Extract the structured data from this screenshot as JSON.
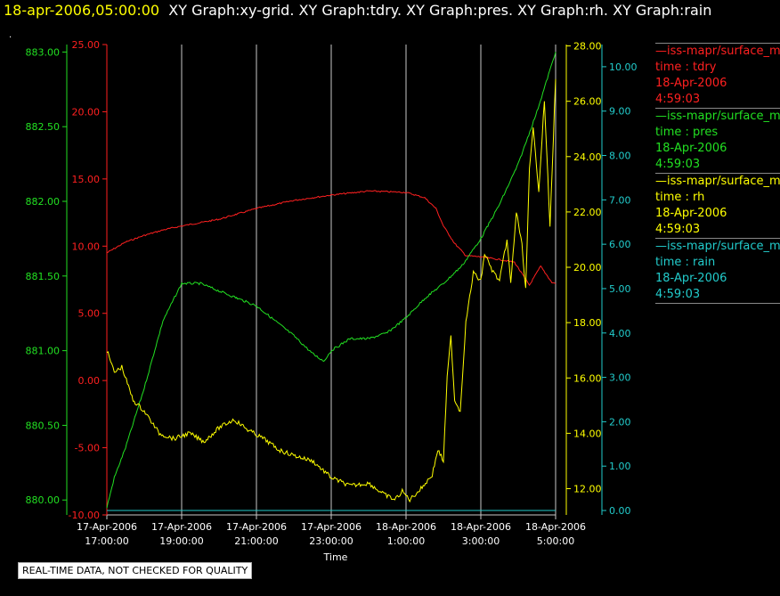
{
  "header": {
    "date": "18-apr-2006,05:00:00",
    "titles": "XY Graph:xy-grid.  XY Graph:tdry.  XY Graph:pres.  XY Graph:rh.  XY Graph:rain",
    "dot": "."
  },
  "colors": {
    "tdry": "#ff2020",
    "pres": "#22e022",
    "rh": "#ffff00",
    "rain": "#22cccc",
    "grid": "#c8c8c8"
  },
  "legend": [
    {
      "series": "tdry",
      "source": "—iss-mapr/surface_m",
      "name": "time : tdry",
      "date": "18-Apr-2006",
      "time": "4:59:03"
    },
    {
      "series": "pres",
      "source": "—iss-mapr/surface_m",
      "name": "time : pres",
      "date": "18-Apr-2006",
      "time": "4:59:03"
    },
    {
      "series": "rh",
      "source": "—iss-mapr/surface_m",
      "name": "time : rh",
      "date": "18-Apr-2006",
      "time": "4:59:03"
    },
    {
      "series": "rain",
      "source": "—iss-mapr/surface_m",
      "name": "time : rain",
      "date": "18-Apr-2006",
      "time": "4:59:03"
    }
  ],
  "notice": "REAL-TIME DATA, NOT CHECKED FOR QUALITY",
  "chart_data": {
    "type": "line",
    "xlabel": "Time",
    "x_ticks": [
      {
        "t": 17,
        "date": "17-Apr-2006",
        "time": "17:00:00"
      },
      {
        "t": 19,
        "date": "17-Apr-2006",
        "time": "19:00:00"
      },
      {
        "t": 21,
        "date": "17-Apr-2006",
        "time": "21:00:00"
      },
      {
        "t": 23,
        "date": "17-Apr-2006",
        "time": "23:00:00"
      },
      {
        "t": 25,
        "date": "18-Apr-2006",
        "time": "1:00:00"
      },
      {
        "t": 27,
        "date": "18-Apr-2006",
        "time": "3:00:00"
      },
      {
        "t": 29,
        "date": "18-Apr-2006",
        "time": "5:00:00"
      }
    ],
    "xlim": [
      17,
      29
    ],
    "grid": "vertical",
    "axes": {
      "tdry": {
        "ylim": [
          -10,
          25
        ],
        "ticks": [
          "-10.00",
          "-5.00",
          "0.00",
          "5.00",
          "10.00",
          "15.00",
          "20.00",
          "25.00"
        ]
      },
      "pres": {
        "ylim": [
          879.9,
          883.05
        ],
        "ticks": [
          "880.00",
          "880.50",
          "881.00",
          "881.50",
          "882.00",
          "882.50",
          "883.00"
        ]
      },
      "rh": {
        "ylim": [
          11.05,
          28.05
        ],
        "ticks": [
          "12.00",
          "14.00",
          "16.00",
          "18.00",
          "20.00",
          "22.00",
          "24.00",
          "26.00",
          "28.00"
        ]
      },
      "rain": {
        "ylim": [
          -0.1,
          10.5
        ],
        "ticks": [
          "0.00",
          "1.00",
          "2.00",
          "3.00",
          "4.00",
          "5.00",
          "6.00",
          "7.00",
          "8.00",
          "9.00",
          "10.00"
        ]
      }
    },
    "series": [
      {
        "key": "tdry",
        "name": "time : tdry",
        "x": [
          17.0,
          17.5,
          18.0,
          18.5,
          19.0,
          20.0,
          21.0,
          22.0,
          23.0,
          24.0,
          25.0,
          25.5,
          25.8,
          26.0,
          26.3,
          26.6,
          27.0,
          27.5,
          27.9,
          28.3,
          28.6,
          28.9,
          29.0
        ],
        "y": [
          9.5,
          10.3,
          10.8,
          11.2,
          11.5,
          12.0,
          12.8,
          13.4,
          13.8,
          14.1,
          14.0,
          13.6,
          12.8,
          11.5,
          10.2,
          9.3,
          9.2,
          9.0,
          8.8,
          7.1,
          8.5,
          7.3,
          7.2
        ]
      },
      {
        "key": "pres",
        "name": "time : pres",
        "x": [
          17.0,
          17.2,
          17.5,
          18.0,
          18.5,
          19.0,
          19.5,
          20.0,
          20.5,
          21.0,
          21.5,
          22.0,
          22.5,
          22.8,
          23.0,
          23.5,
          24.0,
          24.5,
          25.0,
          25.5,
          26.0,
          26.5,
          27.0,
          27.5,
          28.0,
          28.5,
          29.0
        ],
        "y": [
          879.95,
          880.15,
          880.35,
          880.75,
          881.2,
          881.45,
          881.45,
          881.4,
          881.35,
          881.3,
          881.2,
          881.1,
          880.98,
          880.93,
          881.0,
          881.08,
          881.08,
          881.12,
          881.22,
          881.35,
          881.45,
          881.57,
          881.75,
          881.98,
          882.25,
          882.6,
          883.0
        ]
      },
      {
        "key": "rh",
        "name": "time : rh",
        "x": [
          17.0,
          17.2,
          17.4,
          17.7,
          18.0,
          18.4,
          18.8,
          19.2,
          19.6,
          20.0,
          20.4,
          20.8,
          21.2,
          21.6,
          22.0,
          22.5,
          23.0,
          23.5,
          24.0,
          24.4,
          24.7,
          24.9,
          25.1,
          25.4,
          25.7,
          25.85,
          26.0,
          26.1,
          26.2,
          26.3,
          26.45,
          26.6,
          26.8,
          27.0,
          27.1,
          27.3,
          27.5,
          27.7,
          27.8,
          27.95,
          28.1,
          28.2,
          28.3,
          28.4,
          28.55,
          28.7,
          28.85,
          29.0
        ],
        "y": [
          17.0,
          16.2,
          16.4,
          15.2,
          14.8,
          14.0,
          13.8,
          14.0,
          13.7,
          14.2,
          14.5,
          14.1,
          13.8,
          13.4,
          13.2,
          13.0,
          12.4,
          12.1,
          12.2,
          11.8,
          11.6,
          11.9,
          11.6,
          12.0,
          12.5,
          13.4,
          13.0,
          16.0,
          17.5,
          15.2,
          14.8,
          18.0,
          19.8,
          19.5,
          20.5,
          19.9,
          19.5,
          21.0,
          19.4,
          22.0,
          20.8,
          19.2,
          23.5,
          25.0,
          22.8,
          26.0,
          21.5,
          26.8
        ]
      },
      {
        "key": "rain",
        "name": "time : rain",
        "x": [
          17.0,
          29.0
        ],
        "y": [
          0.0,
          0.0
        ]
      }
    ]
  }
}
